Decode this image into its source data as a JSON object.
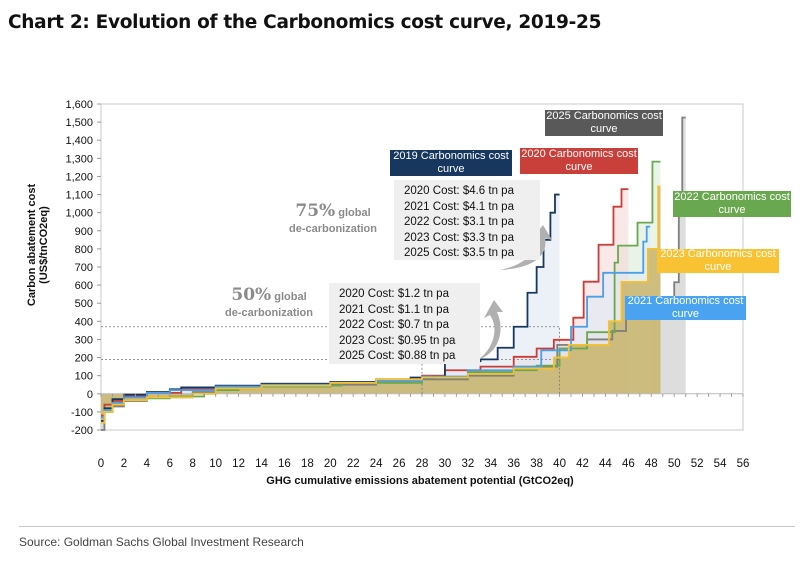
{
  "title": "Chart 2: Evolution of the Carbonomics cost curve, 2019-25",
  "source": "Source: Goldman Sachs Global Investment Research",
  "chart_data": {
    "type": "line",
    "style": "step cost curves with area fill",
    "xlabel": "GHG cumulative emissions abatement potential (GtCO2eq)",
    "ylabel": "Carbon abatement cost (US$/tnCO2eq)",
    "xlim": [
      0,
      56
    ],
    "ylim": [
      -200,
      1600
    ],
    "xticks": [
      "0",
      "2",
      "4",
      "6",
      "8",
      "10",
      "12",
      "14",
      "16",
      "18",
      "20",
      "22",
      "24",
      "26",
      "28",
      "30",
      "32",
      "34",
      "36",
      "38",
      "40",
      "42",
      "44",
      "46",
      "48",
      "50",
      "52",
      "54",
      "56"
    ],
    "yticks": [
      "1,600",
      "1,500",
      "1,400",
      "1,300",
      "1,200",
      "1,100",
      "1,000",
      "900",
      "800",
      "700",
      "600",
      "500",
      "400",
      "300",
      "200",
      "100",
      "0",
      "-100",
      "-200"
    ],
    "grid": false,
    "series": [
      {
        "name": "2025 Carbonomics cost curve",
        "color": "#7f7f7f",
        "fill": "#d4d4d4",
        "points": [
          [
            0,
            -200
          ],
          [
            0.3,
            -100
          ],
          [
            1,
            -70
          ],
          [
            2,
            -40
          ],
          [
            4,
            -20
          ],
          [
            8,
            10
          ],
          [
            10,
            30
          ],
          [
            14,
            40
          ],
          [
            20,
            50
          ],
          [
            24,
            65
          ],
          [
            28,
            80
          ],
          [
            32,
            100
          ],
          [
            36,
            150
          ],
          [
            39.8,
            270
          ],
          [
            42.4,
            300
          ],
          [
            44.6,
            347
          ],
          [
            45.8,
            420
          ],
          [
            49.4,
            510
          ],
          [
            50,
            616
          ],
          [
            50.4,
            1000
          ],
          [
            50.7,
            1525
          ],
          [
            51,
            1525
          ]
        ]
      },
      {
        "name": "2022 Carbonomics cost curve",
        "color": "#6aa84f",
        "fill": "#d9ead3",
        "points": [
          [
            0,
            -130
          ],
          [
            0.3,
            -100
          ],
          [
            1,
            -60
          ],
          [
            2,
            -35
          ],
          [
            4,
            -25
          ],
          [
            6,
            -15
          ],
          [
            9,
            0
          ],
          [
            10,
            20
          ],
          [
            12,
            40
          ],
          [
            20,
            45
          ],
          [
            21,
            60
          ],
          [
            28,
            90
          ],
          [
            32,
            120
          ],
          [
            36,
            130
          ],
          [
            38,
            155
          ],
          [
            40,
            250
          ],
          [
            42.4,
            340
          ],
          [
            44.8,
            724
          ],
          [
            45.1,
            818
          ],
          [
            46.8,
            945
          ],
          [
            48.1,
            1282
          ],
          [
            48.8,
            1282
          ]
        ]
      },
      {
        "name": "2020 Carbonomics cost curve",
        "color": "#cc3c36",
        "fill": "#f4d6d5",
        "points": [
          [
            0,
            -120
          ],
          [
            0.3,
            -60
          ],
          [
            1,
            -40
          ],
          [
            2,
            -15
          ],
          [
            4,
            5
          ],
          [
            7,
            25
          ],
          [
            10,
            40
          ],
          [
            14,
            55
          ],
          [
            20,
            60
          ],
          [
            24,
            75
          ],
          [
            28,
            100
          ],
          [
            30,
            130
          ],
          [
            33.1,
            150
          ],
          [
            36,
            204
          ],
          [
            38,
            250
          ],
          [
            39.5,
            298
          ],
          [
            41.2,
            420
          ],
          [
            42.1,
            619
          ],
          [
            43.4,
            823
          ],
          [
            44.7,
            1033
          ],
          [
            45.4,
            1130
          ],
          [
            46,
            1130
          ]
        ]
      },
      {
        "name": "2019 Carbonomics cost curve",
        "color": "#17375e",
        "fill": "#dde6f2",
        "points": [
          [
            0,
            -150
          ],
          [
            0.3,
            -80
          ],
          [
            1,
            -30
          ],
          [
            2,
            -5
          ],
          [
            4,
            10
          ],
          [
            6,
            25
          ],
          [
            7,
            35
          ],
          [
            10,
            45
          ],
          [
            14,
            55
          ],
          [
            20,
            65
          ],
          [
            24,
            80
          ],
          [
            27,
            90
          ],
          [
            29,
            95
          ],
          [
            30,
            170
          ],
          [
            31,
            180
          ],
          [
            33.1,
            190
          ],
          [
            34.6,
            254
          ],
          [
            36,
            370
          ],
          [
            37.2,
            558
          ],
          [
            38,
            700
          ],
          [
            38.6,
            850
          ],
          [
            39.2,
            1000
          ],
          [
            39.6,
            1100
          ],
          [
            40,
            1100
          ]
        ]
      },
      {
        "name": "2021 Carbonomics cost curve",
        "color": "#4a9fe8",
        "fill": "#dbe9f7",
        "points": [
          [
            0,
            -130
          ],
          [
            0.3,
            -90
          ],
          [
            1,
            -50
          ],
          [
            2,
            -20
          ],
          [
            4,
            5
          ],
          [
            6,
            20
          ],
          [
            10,
            40
          ],
          [
            14,
            50
          ],
          [
            20,
            60
          ],
          [
            24,
            70
          ],
          [
            28,
            95
          ],
          [
            32,
            130
          ],
          [
            36,
            150
          ],
          [
            38.4,
            240
          ],
          [
            41,
            370
          ],
          [
            42.4,
            536
          ],
          [
            43.8,
            668
          ],
          [
            47.3,
            840
          ],
          [
            47.6,
            923
          ],
          [
            47.9,
            923
          ]
        ]
      },
      {
        "name": "2023 Carbonomics cost curve",
        "color": "#f5c12e",
        "fill": "#c9b46b",
        "points": [
          [
            0,
            -160
          ],
          [
            0.3,
            -100
          ],
          [
            1,
            -60
          ],
          [
            2,
            -35
          ],
          [
            4,
            -20
          ],
          [
            8,
            0
          ],
          [
            10,
            30
          ],
          [
            14,
            45
          ],
          [
            20,
            60
          ],
          [
            24,
            80
          ],
          [
            28,
            90
          ],
          [
            32,
            110
          ],
          [
            36,
            140
          ],
          [
            39.5,
            200
          ],
          [
            40.8,
            270
          ],
          [
            44.3,
            400
          ],
          [
            45.4,
            618
          ],
          [
            47.7,
            800
          ],
          [
            48.6,
            1144
          ],
          [
            48.8,
            1144
          ]
        ]
      }
    ],
    "reference_lines": [
      {
        "label": "50% global de-carbonization",
        "x": 28,
        "y": 190
      },
      {
        "label": "75% global de-carbonization",
        "x": 40,
        "y": 370
      }
    ],
    "annotations": {
      "labels": [
        {
          "text": "2019 Carbonomics cost curve",
          "color": "#17375e"
        },
        {
          "text": "2020 Carbonomics cost curve",
          "color": "#c9403a"
        },
        {
          "text": "2021 Carbonomics cost curve",
          "color": "#4aa3f0"
        },
        {
          "text": "2022 Carbonomics cost curve",
          "color": "#6aa84f"
        },
        {
          "text": "2023 Carbonomics cost curve",
          "color": "#f8c232"
        },
        {
          "text": "2025 Carbonomics cost curve",
          "color": "#595959"
        }
      ],
      "decarb_75": {
        "pct": "75%",
        "line1": "global",
        "line2": "de-carbonization"
      },
      "decarb_50": {
        "pct": "50%",
        "line1": "global",
        "line2": "de-carbonization"
      },
      "costs_75": [
        "2020 Cost: $4.6 tn pa",
        "2021 Cost: $4.1 tn pa",
        "2022 Cost: $3.1 tn pa",
        "2023 Cost: $3.3 tn pa",
        "2025 Cost: $3.5 tn pa"
      ],
      "costs_50": [
        "2020 Cost: $1.2 tn pa",
        "2021 Cost: $1.1 tn pa",
        "2022 Cost: $0.7 tn pa",
        "2023 Cost: $0.95 tn pa",
        "2025 Cost: $0.88 tn pa"
      ]
    }
  }
}
